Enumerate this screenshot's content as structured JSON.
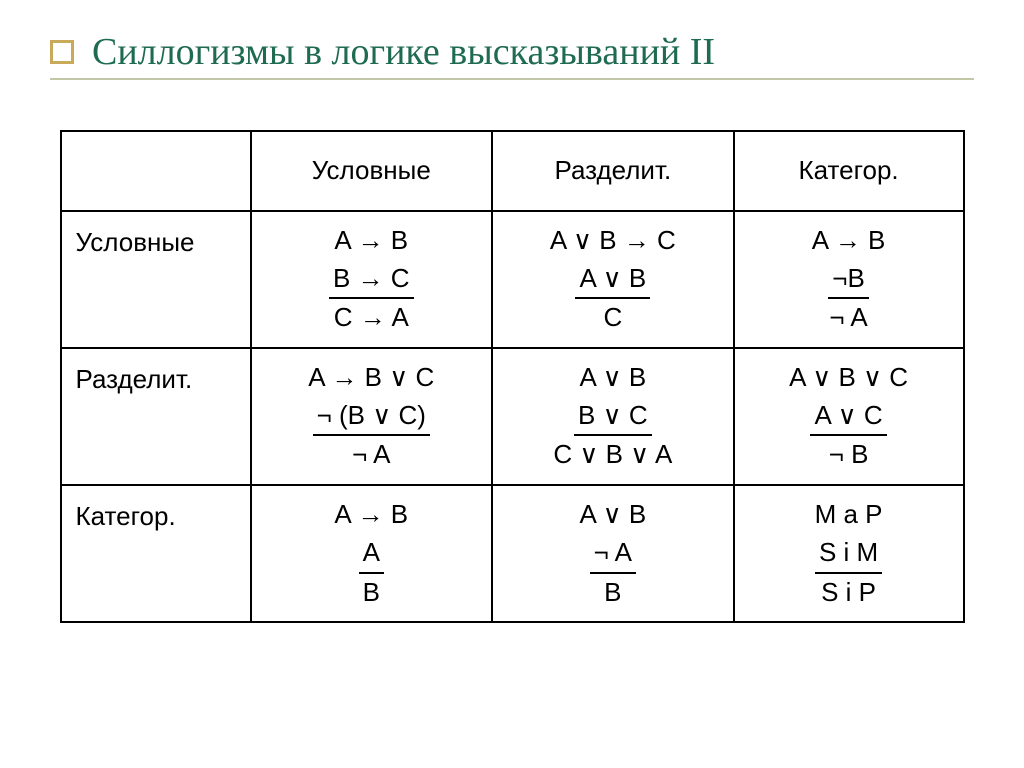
{
  "title": "Силлогизмы в логике высказываний II",
  "headers": [
    "Условные",
    "Разделит.",
    "Категор."
  ],
  "rowLabels": [
    "Условные",
    "Разделит.",
    "Категор."
  ],
  "cells": [
    [
      {
        "p1": "A → B",
        "p2": "B → C",
        "c": "C → A"
      },
      {
        "p1": "A ∨ B → C",
        "p2": "A ∨ B",
        "c": "C"
      },
      {
        "p1": "A → B",
        "p2": "¬B",
        "c": "¬ A"
      }
    ],
    [
      {
        "p1": "A → B ∨ C",
        "p2": "¬ (B ∨ C)",
        "c": "¬ A"
      },
      {
        "p1": "A ∨ B",
        "p2": "B ∨ C",
        "c": "C ∨ B ∨ A"
      },
      {
        "p1": "A ∨ B ∨ C",
        "p2": "A ∨ C",
        "c": "¬ B"
      }
    ],
    [
      {
        "p1": "A → B",
        "p2": "A",
        "c": "B"
      },
      {
        "p1": "A ∨ B",
        "p2": "¬ A",
        "c": "B"
      },
      {
        "p1": "M a P",
        "p2": "S i M",
        "c": "S i P"
      }
    ]
  ]
}
